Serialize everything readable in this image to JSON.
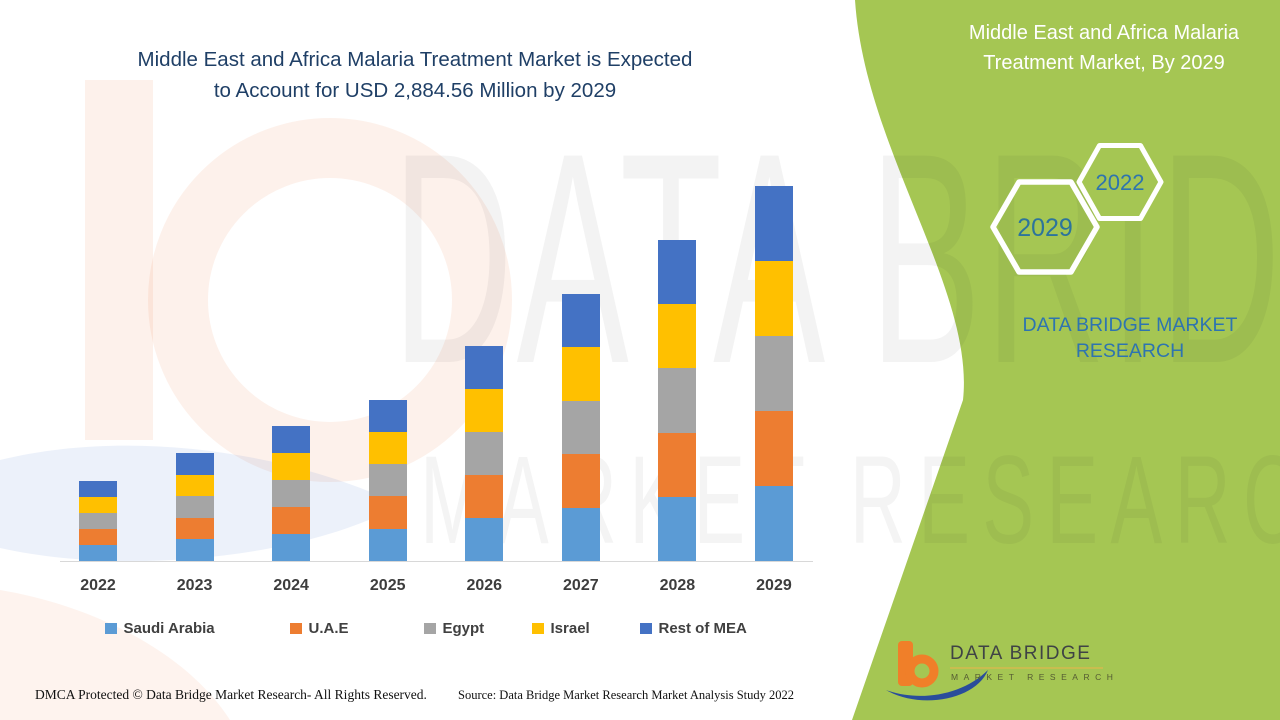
{
  "header": {
    "title_line1": "Middle East and Africa Malaria Treatment Market is Expected",
    "title_line2": "to Account for USD 2,884.56 Million by 2029"
  },
  "side_panel": {
    "title_line1": "Middle East and Africa Malaria",
    "title_line2": "Treatment Market, By 2029",
    "hexagon_small_year": "2022",
    "hexagon_large_year": "2029",
    "brand_text": "DATA BRIDGE MARKET RESEARCH",
    "background_color": "#a5c653"
  },
  "chart_data": {
    "type": "bar",
    "stacked": true,
    "title": "Middle East and Africa Malaria Treatment Market, By 2029",
    "unit": "USD Million",
    "categories": [
      "2022",
      "2023",
      "2024",
      "2025",
      "2026",
      "2027",
      "2028",
      "2029"
    ],
    "series": [
      {
        "name": "Saudi Arabia",
        "color": "#5B9BD5",
        "values": [
          124,
          166.4,
          207.6,
          248.6,
          331,
          411.6,
          493.4,
          576.9
        ]
      },
      {
        "name": "U.A.E",
        "color": "#ED7D31",
        "values": [
          124,
          166.4,
          207.6,
          248.6,
          331,
          411.6,
          493.4,
          576.9
        ]
      },
      {
        "name": "Egypt",
        "color": "#A5A5A5",
        "values": [
          124,
          166.4,
          207.6,
          248.6,
          331,
          411.6,
          493.4,
          576.9
        ]
      },
      {
        "name": "Israel",
        "color": "#FFC000",
        "values": [
          124,
          166.4,
          207.6,
          248.6,
          331,
          411.6,
          493.4,
          576.9
        ]
      },
      {
        "name": "Rest of MEA",
        "color": "#4472C4",
        "values": [
          124,
          166.4,
          207.6,
          248.6,
          331,
          411.6,
          493.4,
          576.9
        ]
      }
    ],
    "totals": [
      620,
      832,
      1038,
      1243,
      1655,
      2058,
      2467,
      2884.56
    ],
    "highlight_value_2029": "USD 2,884.56 Million",
    "xlabel": "",
    "ylabel": "",
    "ylim": [
      0,
      2950
    ],
    "y_axis_visible": false,
    "gridlines": false,
    "legend_position": "bottom"
  },
  "footer": {
    "dmca": "DMCA Protected © Data Bridge Market Research- All Rights Reserved.",
    "source": "Source: Data Bridge Market Research Market Analysis Study 2022"
  },
  "logo": {
    "name": "DATA BRIDGE",
    "subtitle": "MARKET RESEARCH"
  },
  "watermark": {
    "line1": "DATA BRIDGE",
    "line2": "MARKET RESEARCH"
  }
}
